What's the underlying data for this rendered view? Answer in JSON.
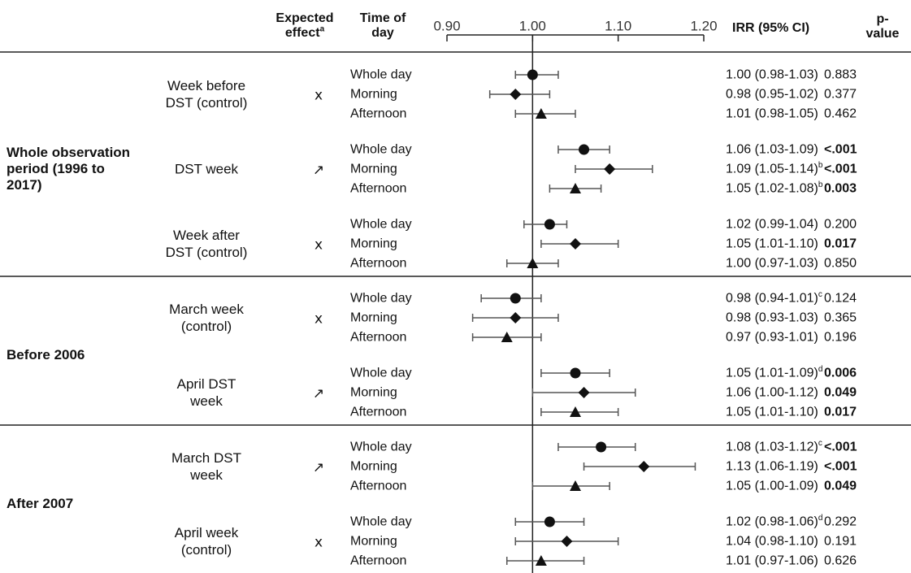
{
  "chart_data": {
    "type": "forest",
    "headers": {
      "effect": "Expected effect",
      "effect_note": "a",
      "time": "Time of day",
      "irr": "IRR (95% CI)",
      "p": "p-value"
    },
    "xlim": [
      0.9,
      1.2
    ],
    "xticks": [
      {
        "value": 0.9,
        "label": "0.90"
      },
      {
        "value": 1.0,
        "label": "1.00"
      },
      {
        "value": 1.1,
        "label": "1.10"
      },
      {
        "value": 1.2,
        "label": "1.20"
      }
    ],
    "ref_line": 1,
    "markers": {
      "Whole day": "circle",
      "Morning": "diamond",
      "Afternoon": "triangle"
    },
    "groups": [
      {
        "name": "Whole observation period (1996 to 2017)",
        "subgroups": [
          {
            "name": "Week before DST (control)",
            "effect": "x",
            "rows": [
              {
                "time": "Whole day",
                "irr": 1.0,
                "ci": [
                  0.98,
                  1.03
                ],
                "value_label": "1.00 (0.98-1.03)",
                "p": "0.883",
                "bold": false
              },
              {
                "time": "Morning",
                "irr": 0.98,
                "ci": [
                  0.95,
                  1.02
                ],
                "value_label": "0.98 (0.95-1.02)",
                "p": "0.377",
                "bold": false
              },
              {
                "time": "Afternoon",
                "irr": 1.01,
                "ci": [
                  0.98,
                  1.05
                ],
                "value_label": "1.01 (0.98-1.05)",
                "p": "0.462",
                "bold": false
              }
            ]
          },
          {
            "name": "DST week",
            "effect": "↗",
            "rows": [
              {
                "time": "Whole day",
                "irr": 1.06,
                "ci": [
                  1.03,
                  1.09
                ],
                "value_label": "1.06 (1.03-1.09)",
                "p": "<.001",
                "bold": true
              },
              {
                "time": "Morning",
                "irr": 1.09,
                "ci": [
                  1.05,
                  1.14
                ],
                "value_label": "1.09 (1.05-1.14)",
                "note": "b",
                "p": "<.001",
                "bold": true
              },
              {
                "time": "Afternoon",
                "irr": 1.05,
                "ci": [
                  1.02,
                  1.08
                ],
                "value_label": "1.05 (1.02-1.08)",
                "note": "b",
                "p": "0.003",
                "bold": true
              }
            ]
          },
          {
            "name": "Week after DST (control)",
            "effect": "x",
            "rows": [
              {
                "time": "Whole day",
                "irr": 1.02,
                "ci": [
                  0.99,
                  1.04
                ],
                "value_label": "1.02 (0.99-1.04)",
                "p": "0.200",
                "bold": false
              },
              {
                "time": "Morning",
                "irr": 1.05,
                "ci": [
                  1.01,
                  1.1
                ],
                "value_label": "1.05 (1.01-1.10)",
                "p": "0.017",
                "bold": true
              },
              {
                "time": "Afternoon",
                "irr": 1.0,
                "ci": [
                  0.97,
                  1.03
                ],
                "value_label": "1.00 (0.97-1.03)",
                "p": "0.850",
                "bold": false
              }
            ]
          }
        ]
      },
      {
        "name": "Before 2006",
        "subgroups": [
          {
            "name": "March week (control)",
            "effect": "x",
            "rows": [
              {
                "time": "Whole day",
                "irr": 0.98,
                "ci": [
                  0.94,
                  1.01
                ],
                "value_label": "0.98 (0.94-1.01)",
                "note": "c",
                "p": "0.124",
                "bold": false
              },
              {
                "time": "Morning",
                "irr": 0.98,
                "ci": [
                  0.93,
                  1.03
                ],
                "value_label": "0.98 (0.93-1.03)",
                "p": "0.365",
                "bold": false
              },
              {
                "time": "Afternoon",
                "irr": 0.97,
                "ci": [
                  0.93,
                  1.01
                ],
                "value_label": "0.97 (0.93-1.01)",
                "p": "0.196",
                "bold": false
              }
            ]
          },
          {
            "name": "April DST week",
            "effect": "↗",
            "rows": [
              {
                "time": "Whole day",
                "irr": 1.05,
                "ci": [
                  1.01,
                  1.09
                ],
                "value_label": "1.05 (1.01-1.09)",
                "note": "d",
                "p": "0.006",
                "bold": true
              },
              {
                "time": "Morning",
                "irr": 1.06,
                "ci": [
                  1.0,
                  1.12
                ],
                "value_label": "1.06 (1.00-1.12)",
                "p": "0.049",
                "bold": true
              },
              {
                "time": "Afternoon",
                "irr": 1.05,
                "ci": [
                  1.01,
                  1.1
                ],
                "value_label": "1.05 (1.01-1.10)",
                "p": "0.017",
                "bold": true
              }
            ]
          }
        ]
      },
      {
        "name": "After 2007",
        "subgroups": [
          {
            "name": "March DST week",
            "effect": "↗",
            "rows": [
              {
                "time": "Whole day",
                "irr": 1.08,
                "ci": [
                  1.03,
                  1.12
                ],
                "value_label": "1.08 (1.03-1.12)",
                "note": "c",
                "p": "<.001",
                "bold": true
              },
              {
                "time": "Morning",
                "irr": 1.13,
                "ci": [
                  1.06,
                  1.19
                ],
                "value_label": "1.13 (1.06-1.19)",
                "p": "<.001",
                "bold": true
              },
              {
                "time": "Afternoon",
                "irr": 1.05,
                "ci": [
                  1.0,
                  1.09
                ],
                "value_label": "1.05 (1.00-1.09)",
                "p": "0.049",
                "bold": true
              }
            ]
          },
          {
            "name": "April week (control)",
            "effect": "x",
            "rows": [
              {
                "time": "Whole day",
                "irr": 1.02,
                "ci": [
                  0.98,
                  1.06
                ],
                "value_label": "1.02 (0.98-1.06)",
                "note": "d",
                "p": "0.292",
                "bold": false
              },
              {
                "time": "Morning",
                "irr": 1.04,
                "ci": [
                  0.98,
                  1.1
                ],
                "value_label": "1.04 (0.98-1.10)",
                "p": "0.191",
                "bold": false
              },
              {
                "time": "Afternoon",
                "irr": 1.01,
                "ci": [
                  0.97,
                  1.06
                ],
                "value_label": "1.01 (0.97-1.06)",
                "p": "0.626",
                "bold": false
              }
            ]
          }
        ]
      }
    ]
  }
}
